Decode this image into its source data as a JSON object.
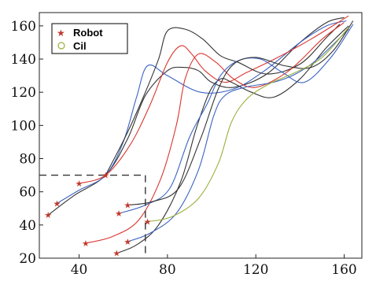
{
  "chart_data": {
    "type": "line",
    "title": "",
    "xlabel": "",
    "ylabel": "",
    "xlim": [
      22,
      168
    ],
    "ylim": [
      20,
      168
    ],
    "xticks": [
      40,
      80,
      120,
      160
    ],
    "yticks": [
      20,
      40,
      60,
      80,
      100,
      120,
      140,
      160
    ],
    "grid": false,
    "legend": {
      "placement": "top-left",
      "entries": [
        {
          "label": "Robot",
          "marker": "star",
          "color": "#c0392b"
        },
        {
          "label": "Cil",
          "marker": "circle",
          "color": "#9aae3a"
        }
      ]
    },
    "region": {
      "x": [
        22,
        70
      ],
      "y": [
        20,
        70
      ],
      "style": "dashed"
    },
    "robot_starts": [
      [
        26,
        46
      ],
      [
        30,
        53
      ],
      [
        40,
        65
      ],
      [
        52,
        70
      ],
      [
        43,
        29
      ],
      [
        57,
        23
      ],
      [
        58,
        47
      ],
      [
        62,
        30
      ],
      [
        62,
        52
      ],
      [
        71,
        42
      ]
    ],
    "series": [
      {
        "color": "#333333",
        "x": [
          26,
          38,
          52,
          62,
          70,
          80,
          87,
          94,
          100,
          110,
          125,
          140,
          152,
          160
        ],
        "y": [
          46,
          58,
          70,
          92,
          118,
          133,
          135,
          133,
          126,
          123,
          131,
          150,
          162,
          165
        ]
      },
      {
        "color": "#3a63c2",
        "x": [
          30,
          40,
          52,
          60,
          66,
          71,
          80,
          95,
          110,
          124,
          140,
          152,
          161
        ],
        "y": [
          53,
          61,
          70,
          90,
          117,
          136,
          130,
          120,
          122,
          133,
          150,
          160,
          163
        ]
      },
      {
        "color": "#d9362f",
        "x": [
          40,
          52,
          63,
          72,
          80,
          86,
          91,
          97,
          106,
          116,
          130,
          145,
          162
        ],
        "y": [
          65,
          70,
          88,
          112,
          138,
          148,
          143,
          133,
          126,
          132,
          141,
          152,
          166
        ]
      },
      {
        "color": "#333333",
        "x": [
          52,
          62,
          70,
          76,
          80,
          88,
          96,
          104,
          112,
          125,
          140,
          152,
          158
        ],
        "y": [
          70,
          96,
          120,
          140,
          157,
          158,
          152,
          142,
          138,
          131,
          137,
          153,
          161
        ]
      },
      {
        "color": "#d9362f",
        "x": [
          43,
          55,
          67,
          77,
          84,
          88,
          94,
          102,
          110,
          120,
          135,
          150,
          160
        ],
        "y": [
          29,
          33,
          43,
          68,
          100,
          128,
          143,
          138,
          128,
          123,
          133,
          152,
          162
        ]
      },
      {
        "color": "#333333",
        "x": [
          57,
          66,
          76,
          86,
          93,
          99,
          104,
          109,
          118,
          128,
          140,
          152,
          162
        ],
        "y": [
          23,
          28,
          40,
          66,
          98,
          120,
          128,
          126,
          120,
          117,
          128,
          147,
          160
        ]
      },
      {
        "color": "#3a63c2",
        "x": [
          58,
          70,
          81,
          90,
          98,
          104,
          112,
          122,
          132,
          142,
          154,
          164
        ],
        "y": [
          47,
          52,
          62,
          93,
          113,
          130,
          139,
          140,
          132,
          126,
          141,
          161
        ]
      },
      {
        "color": "#3a63c2",
        "x": [
          62,
          72,
          84,
          94,
          101,
          106,
          115,
          128,
          138,
          148,
          162
        ],
        "y": [
          30,
          35,
          47,
          73,
          106,
          118,
          123,
          126,
          131,
          140,
          158
        ]
      },
      {
        "color": "#333333",
        "x": [
          62,
          73,
          85,
          95,
          103,
          110,
          120,
          133,
          145,
          155,
          164
        ],
        "y": [
          52,
          54,
          62,
          92,
          122,
          137,
          141,
          136,
          135,
          145,
          163
        ]
      },
      {
        "color": "#9aae3a",
        "x": [
          71,
          82,
          94,
          103,
          109,
          116,
          126,
          138,
          150,
          162
        ],
        "y": [
          42,
          45,
          56,
          77,
          102,
          116,
          125,
          132,
          141,
          159
        ]
      }
    ]
  }
}
